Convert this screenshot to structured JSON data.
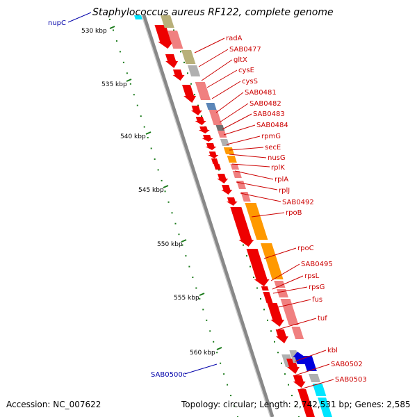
{
  "title": "Staphylococcus aureus RF122, complete genome",
  "footer": {
    "accession": "Accession: NC_007622",
    "topology": "Topology: circular; Length: 2,742,531 bp; Genes: 2,585"
  },
  "colors": {
    "gene_label": "#cc0000",
    "boundary_label": "#0000aa",
    "tick": "#1a7a1a",
    "backbone": "#888888",
    "red": "#ee0000",
    "pink": "#f08080",
    "olive": "#b8b07a",
    "orange": "#ff9900",
    "blue": "#0000dd",
    "cyan": "#00e5ff",
    "grey": "#b0b0b0",
    "steel": "#5b86b8",
    "darkgrey": "#707070"
  },
  "kbp_ticks": [
    "530 kbp",
    "535 kbp",
    "540 kbp",
    "545 kbp",
    "550 kbp",
    "555 kbp",
    "560 kbp"
  ],
  "gene_labels": [
    "radA",
    "SAB0477",
    "gltX",
    "cysE",
    "cysS",
    "SAB0481",
    "SAB0482",
    "SAB0483",
    "SAB0484",
    "rpmG",
    "secE",
    "nusG",
    "rplK",
    "rplA",
    "rplJ",
    "SAB0492",
    "rpoB",
    "rpoC",
    "SAB0495",
    "rpsL",
    "rpsG",
    "fus",
    "tuf",
    "kbl",
    "SAB0502",
    "SAB0503"
  ],
  "boundary_labels": [
    "nupC",
    "SAB0500c"
  ]
}
